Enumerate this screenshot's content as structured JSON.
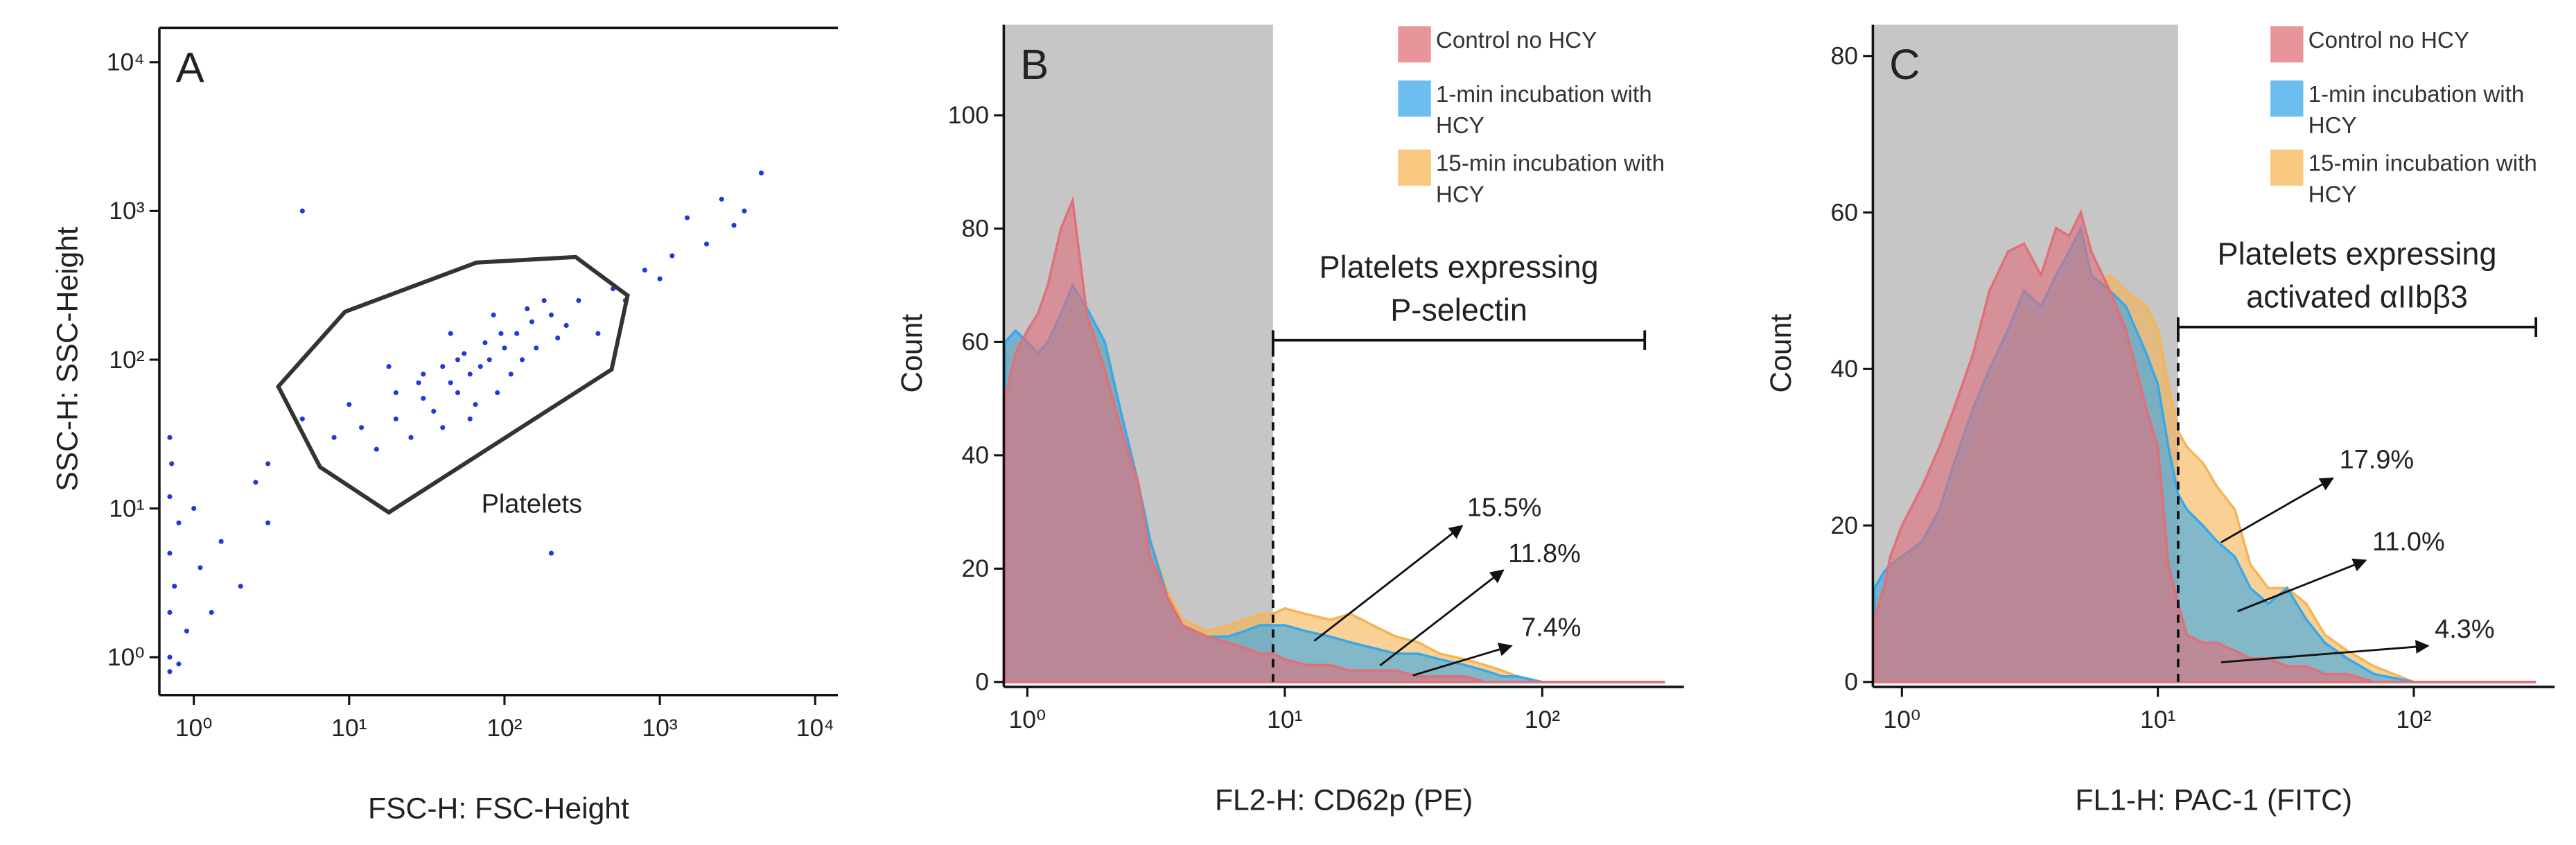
{
  "chart_data": [
    {
      "type": "scatter",
      "panel": "A",
      "xlabel": "FSC-H: FSC-Height",
      "ylabel": "SSC-H: SSC-Height",
      "xscale": "log",
      "yscale": "log",
      "color": "#2238d8",
      "xlim": [
        0.6,
        14000
      ],
      "ylim": [
        0.6,
        17000
      ],
      "xticks": [
        {
          "value": 1,
          "label": "10⁰"
        },
        {
          "value": 10,
          "label": "10¹"
        },
        {
          "value": 100,
          "label": "10²"
        },
        {
          "value": 1000,
          "label": "10³"
        },
        {
          "value": 10000,
          "label": "10⁴"
        }
      ],
      "yticks": [
        {
          "value": 1,
          "label": "10⁰"
        },
        {
          "value": 10,
          "label": "10¹"
        },
        {
          "value": 100,
          "label": "10²"
        },
        {
          "value": 1000,
          "label": "10³"
        },
        {
          "value": 10000,
          "label": "10⁴"
        }
      ],
      "x": [
        20,
        30,
        45,
        60,
        80,
        100,
        50,
        35,
        70,
        120,
        150,
        200,
        25,
        15,
        40,
        55,
        90,
        110,
        130,
        65,
        75,
        30,
        20,
        12,
        10,
        18,
        45,
        85,
        160,
        250,
        300,
        180,
        8,
        40,
        60,
        95,
        140,
        220,
        28,
        50,
        0.7,
        0.7,
        0.75,
        0.7,
        0.8,
        0.7,
        0.72,
        0.9,
        1.1,
        1.3,
        0.7,
        0.8,
        1.5,
        2,
        0.7,
        1,
        2.5,
        3,
        500,
        800,
        1200,
        2000,
        3000,
        2500,
        1500,
        400,
        600,
        1000,
        3500,
        4500,
        5,
        3,
        200,
        5
      ],
      "y": [
        40,
        55,
        70,
        80,
        100,
        120,
        60,
        45,
        90,
        150,
        180,
        200,
        30,
        25,
        90,
        110,
        60,
        80,
        100,
        50,
        130,
        80,
        60,
        35,
        50,
        90,
        150,
        200,
        120,
        170,
        250,
        250,
        30,
        35,
        40,
        150,
        220,
        140,
        70,
        100,
        1,
        2,
        3,
        5,
        8,
        12,
        20,
        1.5,
        4,
        2,
        30,
        0.9,
        6,
        3,
        0.8,
        10,
        15,
        8,
        300,
        400,
        500,
        600,
        800,
        1200,
        900,
        150,
        250,
        350,
        1000,
        1800,
        40,
        20,
        5,
        1000
      ],
      "gate": {
        "label": "Platelets",
        "x": [
          3.5,
          9.4,
          66,
          287,
          620,
          490,
          18,
          6.5
        ],
        "y": [
          66,
          210,
          450,
          490,
          270,
          86,
          9.4,
          19
        ]
      }
    },
    {
      "type": "histogram-overlay",
      "panel": "B",
      "xlabel": "FL2-H: CD62p (PE)",
      "ylabel": "Count",
      "xscale": "log",
      "xlim": [
        0.81,
        355
      ],
      "ylim": [
        0,
        116
      ],
      "xticks": [
        {
          "value": 1,
          "label": "10⁰"
        },
        {
          "value": 10,
          "label": "10¹"
        },
        {
          "value": 100,
          "label": "10²"
        }
      ],
      "yticks": [
        0,
        20,
        40,
        60,
        80,
        100
      ],
      "x": [
        0.82,
        0.9,
        1.0,
        1.1,
        1.2,
        1.35,
        1.5,
        1.7,
        2,
        2.3,
        2.7,
        3,
        3.5,
        4,
        5,
        6,
        7,
        8,
        9,
        10,
        12,
        15,
        18,
        22,
        27,
        33,
        40,
        50,
        60,
        70,
        80,
        100,
        150,
        200,
        300
      ],
      "series": [
        {
          "name": "Control no HCY",
          "color": "#e0707a",
          "values": [
            50,
            58,
            62,
            65,
            70,
            80,
            85,
            65,
            55,
            45,
            35,
            22,
            15,
            10,
            8,
            7,
            6,
            5,
            5,
            4,
            3,
            3,
            2,
            2,
            2,
            1,
            1,
            1,
            0,
            0,
            0,
            0,
            0,
            0,
            0
          ]
        },
        {
          "name": "1-min incubation with HCY",
          "color": "#3aa8e8",
          "values": [
            60,
            62,
            60,
            58,
            60,
            65,
            70,
            66,
            60,
            48,
            35,
            25,
            15,
            10,
            8,
            8,
            9,
            10,
            10,
            10,
            9,
            8,
            7,
            6,
            5,
            5,
            4,
            3,
            2,
            1,
            1,
            0,
            0,
            0,
            0
          ]
        },
        {
          "name": "15-min incubation with HCY",
          "color": "#f5b555",
          "values": [
            58,
            60,
            60,
            58,
            60,
            62,
            68,
            65,
            58,
            48,
            35,
            25,
            16,
            11,
            9,
            10,
            11,
            12,
            12,
            13,
            12,
            11,
            12,
            10,
            8,
            7,
            5,
            4,
            3,
            2,
            1,
            0,
            0,
            0,
            0
          ]
        }
      ],
      "gate": {
        "x": 9,
        "end": 250,
        "label": [
          "Platelets expressing",
          "P-selectin"
        ]
      },
      "annotations": [
        "15.5%",
        "11.8%",
        "7.4%"
      ]
    },
    {
      "type": "histogram-overlay",
      "panel": "C",
      "xlabel": "FL1-H: PAC-1 (FITC)",
      "ylabel": "Count",
      "xscale": "log",
      "xlim": [
        0.77,
        355
      ],
      "ylim": [
        0,
        84
      ],
      "xticks": [
        {
          "value": 1,
          "label": "10⁰"
        },
        {
          "value": 10,
          "label": "10¹"
        },
        {
          "value": 100,
          "label": "10²"
        }
      ],
      "yticks": [
        0,
        20,
        40,
        60,
        80
      ],
      "x": [
        0.78,
        0.85,
        0.9,
        1,
        1.2,
        1.4,
        1.6,
        1.9,
        2.2,
        2.6,
        3,
        3.5,
        4,
        4.5,
        5,
        5.5,
        6.5,
        7.5,
        9,
        10,
        11,
        12,
        13,
        15,
        17,
        20,
        23,
        27,
        32,
        38,
        45,
        55,
        70,
        100,
        150,
        300
      ],
      "series": [
        {
          "name": "Control no HCY",
          "color": "#e0707a",
          "values": [
            8,
            12,
            16,
            20,
            25,
            30,
            35,
            42,
            50,
            55,
            56,
            52,
            58,
            57,
            60,
            55,
            50,
            45,
            35,
            30,
            15,
            10,
            6,
            5,
            5,
            4,
            3,
            3,
            2,
            2,
            1,
            1,
            0,
            0,
            0,
            0
          ]
        },
        {
          "name": "1-min incubation with HCY",
          "color": "#3aa8e8",
          "values": [
            12,
            14,
            15,
            16,
            18,
            22,
            28,
            35,
            40,
            45,
            50,
            48,
            52,
            55,
            58,
            52,
            50,
            48,
            42,
            38,
            30,
            24,
            22,
            20,
            18,
            16,
            12,
            10,
            12,
            8,
            5,
            3,
            1,
            0,
            0,
            0
          ]
        },
        {
          "name": "15-min incubation with HCY",
          "color": "#f5b555",
          "values": [
            10,
            12,
            14,
            16,
            18,
            20,
            25,
            30,
            38,
            42,
            48,
            45,
            50,
            52,
            55,
            50,
            52,
            50,
            48,
            45,
            38,
            32,
            30,
            28,
            25,
            22,
            15,
            12,
            12,
            10,
            6,
            4,
            2,
            0,
            0,
            0
          ]
        }
      ],
      "gate": {
        "x": 12,
        "end": 300,
        "label": [
          "Platelets expressing",
          "activated αIIbβ3"
        ]
      },
      "annotations": [
        "17.9%",
        "11.0%",
        "4.3%"
      ]
    }
  ]
}
